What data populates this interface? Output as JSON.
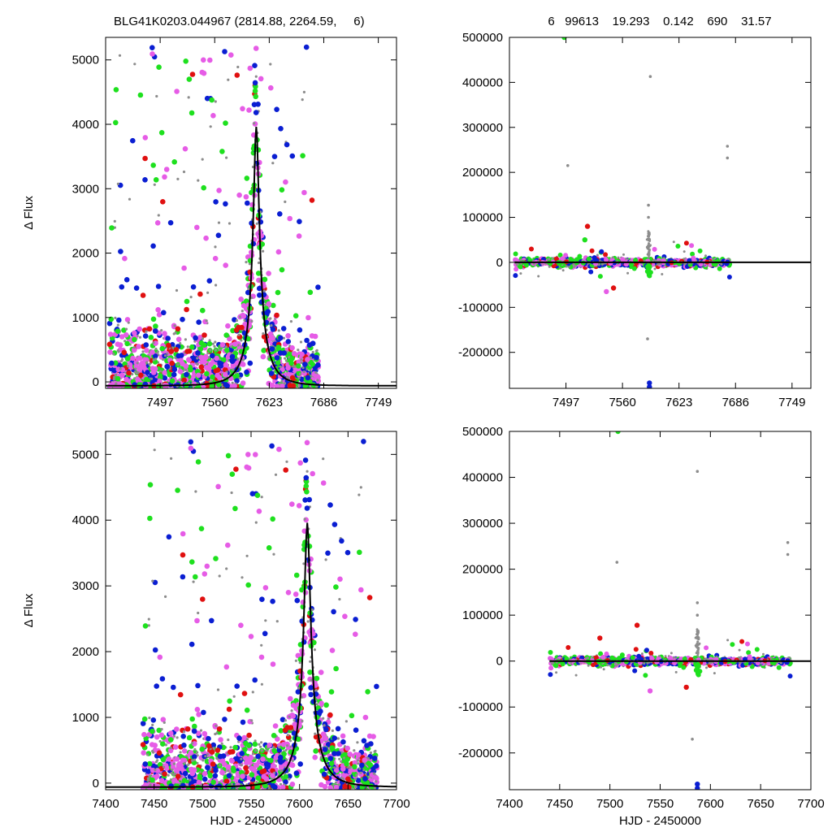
{
  "header": {
    "left": "BLG41K0203.044967 (2814.88, 2264.59,     6)",
    "right": "6   99613    19.293    0.142    690    31.57"
  },
  "colors": {
    "gray": "#8c8c8c",
    "green": "#1ee01e",
    "blue": "#0a1ed2",
    "red": "#e01010",
    "pink": "#e65ce6",
    "model": "#000000"
  },
  "chart_data": [
    {
      "id": "top-left",
      "type": "scatter",
      "ylabel": "Δ Flux",
      "xlabel": "",
      "xlim": [
        7434,
        7770
      ],
      "ylim": [
        -100,
        5350
      ],
      "xticks": [
        7497,
        7560,
        7623,
        7686,
        7749
      ],
      "yticks": [
        0,
        1000,
        2000,
        3000,
        4000,
        5000
      ],
      "model": {
        "t0": 7608,
        "tE": 27,
        "u0": 0.12,
        "fs": 545,
        "base": -60
      },
      "points": {
        "t_range": [
          7435,
          7680
        ],
        "peak_region": [
          7540,
          7680
        ]
      }
    },
    {
      "id": "top-right",
      "type": "scatter",
      "ylabel": "",
      "xlabel": "",
      "xlim": [
        7434,
        7770
      ],
      "ylim": [
        -280000,
        500000
      ],
      "xticks": [
        7497,
        7560,
        7623,
        7686,
        7749
      ],
      "yticks": [
        -200000,
        -100000,
        0,
        100000,
        200000,
        300000,
        400000,
        500000
      ],
      "outliers": [
        {
          "x": 7495,
          "y": 500000,
          "c": "green"
        },
        {
          "x": 7591,
          "y": 413000,
          "c": "gray"
        },
        {
          "x": 7499,
          "y": 215000,
          "c": "gray"
        },
        {
          "x": 7677,
          "y": 258000,
          "c": "gray"
        },
        {
          "x": 7677,
          "y": 232000,
          "c": "gray"
        },
        {
          "x": 7589,
          "y": 127000,
          "c": "gray"
        },
        {
          "x": 7589,
          "y": 100000,
          "c": "gray"
        },
        {
          "x": 7521,
          "y": 80000,
          "c": "red"
        },
        {
          "x": 7518,
          "y": 50000,
          "c": "green"
        },
        {
          "x": 7550,
          "y": -57000,
          "c": "red"
        },
        {
          "x": 7542,
          "y": -65000,
          "c": "pink"
        },
        {
          "x": 7588,
          "y": -170000,
          "c": "gray"
        },
        {
          "x": 7590,
          "y": -268000,
          "c": "blue"
        },
        {
          "x": 7590,
          "y": -277000,
          "c": "blue"
        }
      ]
    },
    {
      "id": "bottom-left",
      "type": "scatter",
      "ylabel": "Δ Flux",
      "xlabel": "HJD - 2450000",
      "xlim": [
        7400,
        7700
      ],
      "ylim": [
        -100,
        5350
      ],
      "xticks": [
        7400,
        7450,
        7500,
        7550,
        7600,
        7650,
        7700
      ],
      "yticks": [
        0,
        1000,
        2000,
        3000,
        4000,
        5000
      ],
      "model": {
        "t0": 7608,
        "tE": 27,
        "u0": 0.12,
        "fs": 545,
        "base": -60
      },
      "points": {
        "t_range": [
          7435,
          7680
        ],
        "peak_region": [
          7540,
          7680
        ]
      }
    },
    {
      "id": "bottom-right",
      "type": "scatter",
      "ylabel": "",
      "xlabel": "HJD - 2450000",
      "xlim": [
        7400,
        7700
      ],
      "ylim": [
        -280000,
        500000
      ],
      "xticks": [
        7400,
        7450,
        7500,
        7550,
        7600,
        7650,
        7700
      ],
      "yticks": [
        -200000,
        -100000,
        0,
        100000,
        200000,
        300000,
        400000,
        500000
      ],
      "outliers": [
        {
          "x": 7508,
          "y": 500000,
          "c": "green"
        },
        {
          "x": 7587,
          "y": 413000,
          "c": "gray"
        },
        {
          "x": 7507,
          "y": 215000,
          "c": "gray"
        },
        {
          "x": 7677,
          "y": 258000,
          "c": "gray"
        },
        {
          "x": 7677,
          "y": 232000,
          "c": "gray"
        },
        {
          "x": 7587,
          "y": 127000,
          "c": "gray"
        },
        {
          "x": 7587,
          "y": 100000,
          "c": "gray"
        },
        {
          "x": 7527,
          "y": 78000,
          "c": "red"
        },
        {
          "x": 7490,
          "y": 50000,
          "c": "red"
        },
        {
          "x": 7576,
          "y": -57000,
          "c": "red"
        },
        {
          "x": 7540,
          "y": -65000,
          "c": "pink"
        },
        {
          "x": 7582,
          "y": -170000,
          "c": "gray"
        },
        {
          "x": 7587,
          "y": -268000,
          "c": "blue"
        },
        {
          "x": 7587,
          "y": -277000,
          "c": "blue"
        }
      ]
    }
  ]
}
